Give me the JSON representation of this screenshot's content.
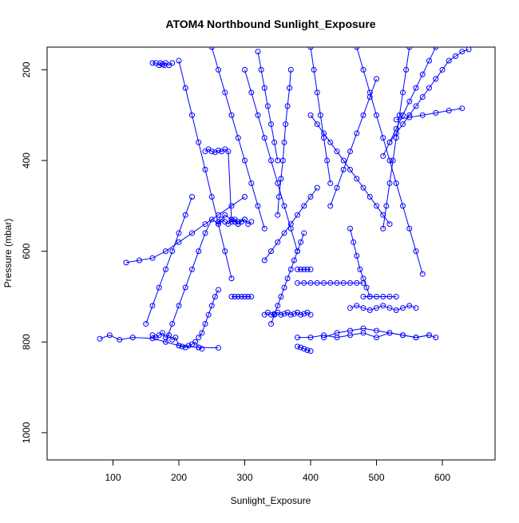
{
  "chart_data": {
    "type": "scatter",
    "title": "ATOM4 Northbound Sunlight_Exposure",
    "xlabel": "Sunlight_Exposure",
    "ylabel": "Pressure (mbar)",
    "xlim": [
      0,
      680
    ],
    "ylim": [
      1060,
      150
    ],
    "y_reversed": true,
    "x_ticks": [
      "100",
      "200",
      "300",
      "400",
      "500",
      "600"
    ],
    "y_ticks": [
      "200",
      "400",
      "600",
      "800",
      "1000"
    ],
    "series_color": "#0000ff",
    "marker": "open-circle",
    "connected": true,
    "grid": false,
    "legend": "none",
    "series": [
      {
        "x": [
          80,
          95,
          110,
          130,
          160,
          200,
          230,
          260
        ],
        "y": [
          793,
          785,
          795,
          790,
          792,
          808,
          812,
          813
        ]
      },
      {
        "x": [
          160,
          165,
          170,
          175,
          180,
          185,
          190,
          195,
          200,
          205,
          210,
          215,
          220,
          225,
          230,
          235
        ],
        "y": [
          785,
          790,
          785,
          780,
          790,
          785,
          795,
          790,
          808,
          810,
          812,
          808,
          805,
          800,
          812,
          815
        ]
      },
      {
        "x": [
          340,
          345,
          350,
          355,
          360,
          365,
          370,
          375,
          380,
          385,
          390
        ],
        "y": [
          760,
          740,
          720,
          700,
          680,
          660,
          640,
          620,
          600,
          580,
          560
        ]
      },
      {
        "x": [
          350,
          352,
          355,
          358,
          360,
          362,
          365,
          368,
          370
        ],
        "y": [
          520,
          480,
          440,
          400,
          360,
          320,
          280,
          240,
          200
        ]
      },
      {
        "x": [
          380,
          400,
          420,
          440,
          460,
          480,
          500,
          520,
          540,
          560,
          580,
          590
        ],
        "y": [
          790,
          790,
          785,
          790,
          785,
          780,
          790,
          780,
          785,
          790,
          785,
          790
        ]
      },
      {
        "x": [
          420,
          440,
          460,
          480,
          500,
          520,
          540,
          560,
          580
        ],
        "y": [
          790,
          780,
          775,
          770,
          775,
          780,
          785,
          790,
          785
        ]
      },
      {
        "x": [
          380,
          390,
          400,
          410,
          420,
          430,
          440,
          450,
          460,
          470,
          480
        ],
        "y": [
          670,
          670,
          670,
          670,
          670,
          670,
          670,
          670,
          670,
          670,
          670
        ]
      },
      {
        "x": [
          380,
          385,
          390,
          395,
          400
        ],
        "y": [
          640,
          640,
          640,
          640,
          640
        ]
      },
      {
        "x": [
          330,
          335,
          340,
          345,
          350,
          355,
          360,
          365,
          370,
          375,
          380,
          385,
          390,
          395,
          400
        ],
        "y": [
          740,
          735,
          740,
          738,
          735,
          740,
          738,
          735,
          740,
          738,
          735,
          740,
          738,
          735,
          740
        ]
      },
      {
        "x": [
          460,
          470,
          480,
          490,
          500,
          510,
          520,
          530,
          540,
          550,
          560
        ],
        "y": [
          725,
          720,
          725,
          730,
          725,
          720,
          725,
          730,
          725,
          720,
          725
        ]
      },
      {
        "x": [
          480,
          490,
          500,
          510,
          520,
          530
        ],
        "y": [
          700,
          700,
          700,
          700,
          700,
          700
        ]
      },
      {
        "x": [
          160,
          165,
          170,
          172,
          175,
          178,
          180,
          185,
          190
        ],
        "y": [
          185,
          185,
          190,
          185,
          188,
          190,
          185,
          190,
          185
        ]
      },
      {
        "x": [
          180,
          190,
          200,
          210,
          220,
          230,
          240,
          250,
          260,
          270,
          280,
          290,
          300
        ],
        "y": [
          800,
          760,
          720,
          680,
          640,
          600,
          560,
          530,
          540,
          520,
          530,
          535,
          530
        ]
      },
      {
        "x": [
          240,
          245,
          250,
          255,
          260,
          265,
          270,
          275,
          280,
          285,
          290
        ],
        "y": [
          380,
          375,
          380,
          382,
          378,
          380,
          375,
          380,
          535,
          530,
          540
        ]
      },
      {
        "x": [
          260,
          265,
          270,
          275,
          280,
          285,
          290,
          295,
          300,
          305,
          310
        ],
        "y": [
          535,
          530,
          535,
          540,
          530,
          535,
          540,
          535,
          530,
          540,
          535
        ]
      },
      {
        "x": [
          280,
          285,
          290,
          295,
          300,
          305,
          310
        ],
        "y": [
          700,
          700,
          700,
          700,
          700,
          700,
          700
        ]
      },
      {
        "x": [
          120,
          140,
          160,
          180,
          200,
          220,
          240,
          260,
          280,
          300
        ],
        "y": [
          625,
          620,
          615,
          600,
          580,
          560,
          540,
          520,
          500,
          480
        ]
      },
      {
        "x": [
          520,
          530,
          540,
          550,
          560,
          570,
          580,
          590,
          600,
          610,
          620,
          630,
          640
        ],
        "y": [
          360,
          340,
          320,
          300,
          280,
          260,
          240,
          220,
          200,
          180,
          170,
          160,
          155
        ]
      },
      {
        "x": [
          470,
          480,
          490,
          500,
          510,
          520,
          530,
          540,
          550,
          560,
          570
        ],
        "y": [
          150,
          200,
          250,
          300,
          350,
          400,
          450,
          500,
          550,
          600,
          650
        ]
      },
      {
        "x": [
          400,
          410,
          420,
          430,
          440,
          450,
          460,
          470,
          480,
          490,
          500,
          510,
          520
        ],
        "y": [
          300,
          320,
          340,
          360,
          380,
          400,
          420,
          440,
          460,
          480,
          500,
          520,
          540
        ]
      },
      {
        "x": [
          300,
          310,
          320,
          330,
          340,
          350,
          360,
          370,
          380
        ],
        "y": [
          200,
          250,
          300,
          350,
          400,
          450,
          500,
          550,
          600
        ]
      },
      {
        "x": [
          250,
          260,
          270,
          280,
          290,
          300,
          310,
          320,
          330
        ],
        "y": [
          150,
          200,
          250,
          300,
          350,
          400,
          450,
          500,
          550
        ]
      },
      {
        "x": [
          200,
          210,
          220,
          230,
          240,
          250,
          260,
          270,
          280
        ],
        "y": [
          180,
          240,
          300,
          360,
          420,
          480,
          540,
          600,
          660
        ]
      },
      {
        "x": [
          550,
          545,
          540,
          535,
          530,
          525,
          520,
          515,
          510
        ],
        "y": [
          150,
          200,
          250,
          300,
          350,
          400,
          450,
          500,
          550
        ]
      },
      {
        "x": [
          590,
          580,
          570,
          560,
          550,
          540,
          530,
          520,
          510
        ],
        "y": [
          150,
          180,
          210,
          240,
          270,
          300,
          330,
          360,
          390
        ]
      },
      {
        "x": [
          630,
          610,
          590,
          570,
          550,
          530
        ],
        "y": [
          285,
          290,
          295,
          300,
          305,
          310
        ]
      },
      {
        "x": [
          150,
          160,
          170,
          180,
          190,
          200,
          210,
          220
        ],
        "y": [
          760,
          720,
          680,
          640,
          600,
          560,
          520,
          480
        ]
      },
      {
        "x": [
          230,
          235,
          240,
          245,
          250,
          255,
          260
        ],
        "y": [
          790,
          780,
          760,
          740,
          720,
          700,
          685
        ]
      },
      {
        "x": [
          380,
          385,
          390,
          395,
          400
        ],
        "y": [
          810,
          812,
          815,
          818,
          820
        ]
      },
      {
        "x": [
          430,
          440,
          450,
          460,
          470,
          480,
          490,
          500
        ],
        "y": [
          500,
          460,
          420,
          380,
          340,
          300,
          260,
          220
        ]
      },
      {
        "x": [
          330,
          340,
          350,
          360,
          370,
          380,
          390,
          400,
          410
        ],
        "y": [
          620,
          600,
          580,
          560,
          540,
          520,
          500,
          480,
          460
        ]
      },
      {
        "x": [
          320,
          325,
          330,
          335,
          340,
          345,
          350
        ],
        "y": [
          160,
          200,
          240,
          280,
          320,
          360,
          400
        ]
      },
      {
        "x": [
          400,
          405,
          410,
          415,
          420,
          425,
          430
        ],
        "y": [
          150,
          200,
          250,
          300,
          350,
          400,
          450
        ]
      },
      {
        "x": [
          460,
          465,
          470,
          475,
          480,
          485,
          490
        ],
        "y": [
          550,
          580,
          610,
          640,
          660,
          680,
          700
        ]
      }
    ]
  }
}
